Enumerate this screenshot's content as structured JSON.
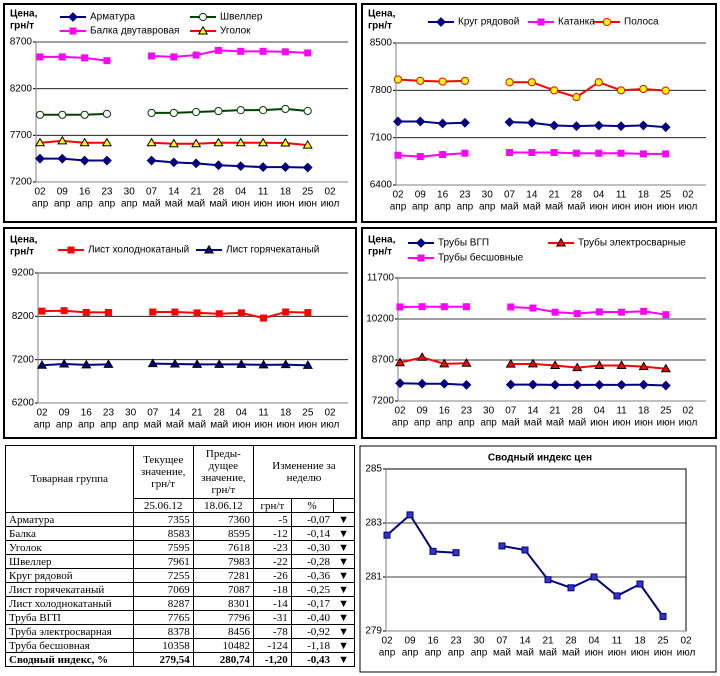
{
  "chart_data": [
    {
      "type": "line",
      "ylabel": [
        "Цена,",
        "грн/т"
      ],
      "ylim": [
        7200,
        8700
      ],
      "yticks": [
        7200,
        7700,
        8200,
        8700
      ],
      "grid": true,
      "categories": [
        [
          "02",
          "апр"
        ],
        [
          "09",
          "апр"
        ],
        [
          "16",
          "апр"
        ],
        [
          "23",
          "апр"
        ],
        [
          "30",
          "апр"
        ],
        [
          "07",
          "май"
        ],
        [
          "14",
          "май"
        ],
        [
          "21",
          "май"
        ],
        [
          "28",
          "май"
        ],
        [
          "04",
          "июн"
        ],
        [
          "11",
          "июн"
        ],
        [
          "18",
          "июн"
        ],
        [
          "25",
          "июн"
        ],
        [
          "02",
          "июл"
        ]
      ],
      "series": [
        {
          "name": "Арматура",
          "color": "#000080",
          "marker": "diamond",
          "marker_fill": "#000080",
          "values": [
            7450,
            7450,
            7430,
            7430,
            null,
            7430,
            7410,
            7400,
            7380,
            7370,
            7360,
            7360,
            7355,
            null
          ]
        },
        {
          "name": "Швеллер",
          "color": "#004000",
          "marker": "circle",
          "marker_fill": "#ffffff",
          "values": [
            7920,
            7920,
            7920,
            7930,
            null,
            7940,
            7940,
            7950,
            7960,
            7970,
            7970,
            7983,
            7961,
            null
          ]
        },
        {
          "name": "Балка двутавровая",
          "color": "#ff00ff",
          "marker": "square",
          "marker_fill": "#ff00ff",
          "values": [
            8540,
            8540,
            8530,
            8500,
            null,
            8550,
            8540,
            8560,
            8610,
            8600,
            8600,
            8595,
            8583,
            null
          ]
        },
        {
          "name": "Уголок",
          "color": "#ff0000",
          "marker": "triangle",
          "marker_fill": "#ffff00",
          "values": [
            7620,
            7640,
            7620,
            7620,
            null,
            7620,
            7610,
            7610,
            7620,
            7620,
            7620,
            7618,
            7595,
            null
          ]
        }
      ]
    },
    {
      "type": "line",
      "ylabel": [
        "Цена,",
        "грн/т"
      ],
      "ylim": [
        6400,
        8500
      ],
      "yticks": [
        6400,
        7100,
        7800,
        8500
      ],
      "grid": true,
      "categories": [
        [
          "02",
          "апр"
        ],
        [
          "09",
          "апр"
        ],
        [
          "16",
          "апр"
        ],
        [
          "23",
          "апр"
        ],
        [
          "30",
          "апр"
        ],
        [
          "07",
          "май"
        ],
        [
          "14",
          "май"
        ],
        [
          "21",
          "май"
        ],
        [
          "28",
          "май"
        ],
        [
          "04",
          "июн"
        ],
        [
          "11",
          "июн"
        ],
        [
          "18",
          "июн"
        ],
        [
          "25",
          "июн"
        ],
        [
          "02",
          "июл"
        ]
      ],
      "series": [
        {
          "name": "Круг рядовой",
          "color": "#000080",
          "marker": "diamond",
          "marker_fill": "#000080",
          "values": [
            7340,
            7340,
            7310,
            7320,
            null,
            7330,
            7320,
            7280,
            7270,
            7280,
            7270,
            7281,
            7255,
            null
          ]
        },
        {
          "name": "Катанка",
          "color": "#ff00ff",
          "marker": "square",
          "marker_fill": "#ff00ff",
          "values": [
            6840,
            6820,
            6850,
            6870,
            null,
            6880,
            6880,
            6880,
            6870,
            6870,
            6870,
            6860,
            6860,
            null
          ]
        },
        {
          "name": "Полоса",
          "color": "#ff0000",
          "marker": "circle",
          "marker_fill": "#ffff00",
          "values": [
            7960,
            7940,
            7930,
            7940,
            null,
            7920,
            7920,
            7800,
            7700,
            7920,
            7800,
            7820,
            7796,
            null
          ]
        }
      ]
    },
    {
      "type": "line",
      "ylabel": [
        "Цена,",
        "грн/т"
      ],
      "ylim": [
        6200,
        9200
      ],
      "yticks": [
        6200,
        7200,
        8200,
        9200
      ],
      "grid": true,
      "categories": [
        [
          "02",
          "апр"
        ],
        [
          "09",
          "апр"
        ],
        [
          "16",
          "апр"
        ],
        [
          "23",
          "апр"
        ],
        [
          "30",
          "апр"
        ],
        [
          "07",
          "май"
        ],
        [
          "14",
          "май"
        ],
        [
          "21",
          "май"
        ],
        [
          "28",
          "май"
        ],
        [
          "04",
          "июн"
        ],
        [
          "11",
          "июн"
        ],
        [
          "18",
          "июн"
        ],
        [
          "25",
          "июн"
        ],
        [
          "02",
          "июл"
        ]
      ],
      "series": [
        {
          "name": "Лист холоднокатаный",
          "color": "#ff0000",
          "marker": "square",
          "marker_fill": "#ff0000",
          "values": [
            8320,
            8330,
            8290,
            8290,
            null,
            8300,
            8300,
            8280,
            8260,
            8280,
            8160,
            8301,
            8287,
            null
          ]
        },
        {
          "name": "Лист горячекатаный",
          "color": "#000080",
          "marker": "triangle",
          "marker_fill": "#000080",
          "values": [
            7070,
            7100,
            7080,
            7090,
            null,
            7110,
            7100,
            7090,
            7090,
            7090,
            7080,
            7087,
            7069,
            null
          ]
        }
      ]
    },
    {
      "type": "line",
      "ylabel": [
        "Цена,",
        "грн/т"
      ],
      "ylim": [
        7200,
        11700
      ],
      "yticks": [
        7200,
        8700,
        10200,
        11700
      ],
      "grid": true,
      "categories": [
        [
          "02",
          "апр"
        ],
        [
          "09",
          "апр"
        ],
        [
          "16",
          "апр"
        ],
        [
          "23",
          "апр"
        ],
        [
          "30",
          "апр"
        ],
        [
          "07",
          "май"
        ],
        [
          "14",
          "май"
        ],
        [
          "21",
          "май"
        ],
        [
          "28",
          "май"
        ],
        [
          "04",
          "июн"
        ],
        [
          "11",
          "июн"
        ],
        [
          "18",
          "июн"
        ],
        [
          "25",
          "июн"
        ],
        [
          "02",
          "июл"
        ]
      ],
      "series": [
        {
          "name": "Трубы ВГП",
          "color": "#000080",
          "marker": "diamond",
          "marker_fill": "#000080",
          "values": [
            7850,
            7830,
            7830,
            7790,
            null,
            7800,
            7800,
            7790,
            7790,
            7790,
            7790,
            7796,
            7765,
            null
          ]
        },
        {
          "name": "Трубы электросварные",
          "color": "#ff0000",
          "marker": "triangle",
          "marker_fill": "#ff0000",
          "values": [
            8600,
            8800,
            8560,
            8580,
            null,
            8550,
            8560,
            8500,
            8420,
            8500,
            8500,
            8456,
            8378,
            null
          ]
        },
        {
          "name": "Трубы бесшовные",
          "color": "#ff00ff",
          "marker": "square",
          "marker_fill": "#ff00ff",
          "values": [
            10640,
            10650,
            10650,
            10650,
            null,
            10640,
            10600,
            10450,
            10400,
            10460,
            10450,
            10482,
            10358,
            null
          ]
        }
      ]
    },
    {
      "type": "line",
      "title": "Сводный индекс цен",
      "ylim": [
        279,
        285
      ],
      "yticks": [
        279,
        281,
        283,
        285
      ],
      "grid": true,
      "categories": [
        [
          "02",
          "апр"
        ],
        [
          "09",
          "апр"
        ],
        [
          "16",
          "апр"
        ],
        [
          "23",
          "апр"
        ],
        [
          "30",
          "апр"
        ],
        [
          "07",
          "май"
        ],
        [
          "14",
          "май"
        ],
        [
          "21",
          "май"
        ],
        [
          "28",
          "май"
        ],
        [
          "04",
          "июн"
        ],
        [
          "11",
          "июн"
        ],
        [
          "18",
          "июн"
        ],
        [
          "25",
          "июн"
        ],
        [
          "02",
          "июл"
        ]
      ],
      "series": [
        {
          "color": "#000080",
          "marker": "square",
          "marker_fill": "#3333cc",
          "values": [
            282.55,
            283.3,
            281.95,
            281.9,
            null,
            282.15,
            282.0,
            280.9,
            280.6,
            281.0,
            280.3,
            280.74,
            279.54,
            null
          ]
        }
      ]
    }
  ],
  "table": {
    "header": {
      "group": "Товарная группа",
      "current": "Текущее значение, грн/т",
      "previous": "Преды-дущее значение, грн/т",
      "change": "Изменение за неделю",
      "current_date": "25.06.12",
      "previous_date": "18.06.12",
      "change_abs": "грн/т",
      "change_pct": "%"
    },
    "rows": [
      [
        "Арматура",
        "7355",
        "7360",
        "-5",
        "-0,07",
        "▼"
      ],
      [
        "Балка",
        "8583",
        "8595",
        "-12",
        "-0,14",
        "▼"
      ],
      [
        "Уголок",
        "7595",
        "7618",
        "-23",
        "-0,30",
        "▼"
      ],
      [
        "Швеллер",
        "7961",
        "7983",
        "-22",
        "-0,28",
        "▼"
      ],
      [
        "Круг рядовой",
        "7255",
        "7281",
        "-26",
        "-0,36",
        "▼"
      ],
      [
        "Лист горячекатаный",
        "7069",
        "7087",
        "-18",
        "-0,25",
        "▼"
      ],
      [
        "Лист холоднокатаный",
        "8287",
        "8301",
        "-14",
        "-0,17",
        "▼"
      ],
      [
        "Труба ВГП",
        "7765",
        "7796",
        "-31",
        "-0,40",
        "▼"
      ],
      [
        "Труба электросварная",
        "8378",
        "8456",
        "-78",
        "-0,92",
        "▼"
      ],
      [
        "Труба бесшовная",
        "10358",
        "10482",
        "-124",
        "-1,18",
        "▼"
      ],
      [
        "Сводный индекс, %",
        "279,54",
        "280,74",
        "-1,20",
        "-0,43",
        "▼"
      ]
    ]
  }
}
